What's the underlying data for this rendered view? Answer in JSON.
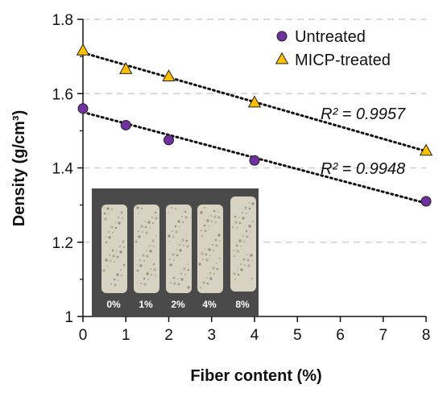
{
  "chart_data": {
    "type": "scatter",
    "title": "",
    "xlabel": "Fiber content (%)",
    "ylabel": "Density (g/cm³)",
    "xlim": [
      0,
      8
    ],
    "ylim": [
      1.0,
      1.8
    ],
    "x_ticks": [
      "0",
      "1",
      "2",
      "3",
      "4",
      "5",
      "6",
      "7",
      "8"
    ],
    "y_ticks": [
      "1",
      "1.2",
      "1.4",
      "1.6",
      "1.8"
    ],
    "grid": "horizontal dashed",
    "legend_position": "top-right",
    "series": [
      {
        "name": "Untreated",
        "marker": "circle",
        "color": "#7030a0",
        "x": [
          0,
          1,
          2,
          4,
          8
        ],
        "y": [
          1.56,
          1.515,
          1.475,
          1.42,
          1.31
        ],
        "trendline": {
          "r2_label": "R² = 0.9948",
          "start": [
            0,
            1.55
          ],
          "end": [
            8,
            1.305
          ]
        }
      },
      {
        "name": "MICP-treated",
        "marker": "triangle",
        "color": "#ffc000",
        "x": [
          0,
          1,
          2,
          4,
          8
        ],
        "y": [
          1.715,
          1.665,
          1.645,
          1.575,
          1.445
        ],
        "trendline": {
          "r2_label": "R² = 0.9957",
          "start": [
            0,
            1.71
          ],
          "end": [
            8,
            1.445
          ]
        }
      }
    ]
  },
  "inset": {
    "labels": [
      "0%",
      "1%",
      "2%",
      "4%",
      "8%"
    ],
    "background_color": "#4a4a4a",
    "sample_color": "#d8d2c2"
  }
}
